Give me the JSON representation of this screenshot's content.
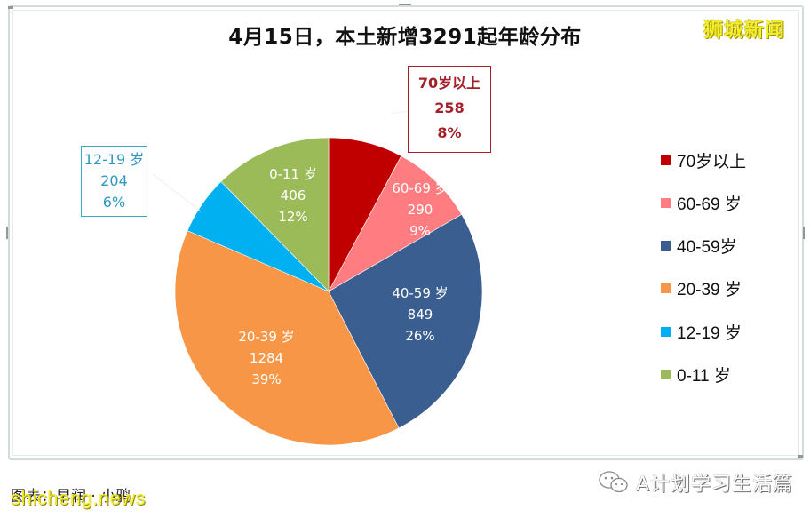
{
  "title": "4月15日，本土新增3291起年龄分布",
  "brand": "狮城新闻",
  "caption": "图表：早润 · 小鸦",
  "watermark": "shicheng.news",
  "wechat_account": "A计划学习生活篇",
  "chart_data": {
    "type": "pie",
    "title": "4月15日，本土新增3291起年龄分布",
    "total": 3291,
    "start_angle_deg": 0,
    "direction": "clockwise",
    "legend_position": "right",
    "categories": [
      "70岁以上",
      "60-69 岁",
      "40-59岁",
      "20-39 岁",
      "12-19 岁",
      "0-11 岁"
    ],
    "values": [
      258,
      290,
      849,
      1284,
      204,
      406
    ],
    "percentages": [
      "8%",
      "9%",
      "26%",
      "39%",
      "6%",
      "12%"
    ],
    "colors": [
      "#c00000",
      "#ff7c80",
      "#3b5e91",
      "#f79646",
      "#00b0f0",
      "#9bbb59"
    ]
  },
  "slices": [
    {
      "label": "70岁以上",
      "value": "258",
      "pct": "8%",
      "color": "#c00000"
    },
    {
      "label": "60-69 岁",
      "value": "290",
      "pct": "9%",
      "color": "#ff7c80"
    },
    {
      "label": "40-59 岁",
      "value": "849",
      "pct": "26%",
      "color": "#3b5e91"
    },
    {
      "label": "20-39 岁",
      "value": "1284",
      "pct": "39%",
      "color": "#f79646"
    },
    {
      "label": "12-19 岁",
      "value": "204",
      "pct": "6%",
      "color": "#00b0f0"
    },
    {
      "label": "0-11 岁",
      "value": "406",
      "pct": "12%",
      "color": "#9bbb59"
    }
  ],
  "legend": [
    {
      "label": "70岁以上",
      "color": "#c00000"
    },
    {
      "label": "60-69 岁",
      "color": "#ff7c80"
    },
    {
      "label": "40-59岁",
      "color": "#3b5e91"
    },
    {
      "label": "20-39 岁",
      "color": "#f79646"
    },
    {
      "label": "12-19 岁",
      "color": "#00b0f0"
    },
    {
      "label": " 0-11 岁",
      "color": "#9bbb59"
    }
  ]
}
